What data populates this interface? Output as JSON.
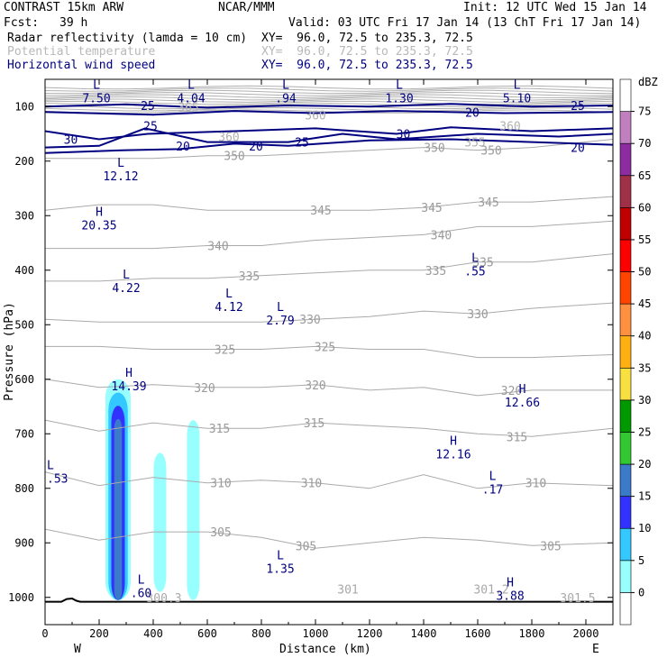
{
  "header": {
    "model": "CONTRAST 15km ARW",
    "org": "NCAR/MMM",
    "init": "Init: 12 UTC Wed 15 Jan 14",
    "fcst_label": "Fcst:",
    "fcst_value": "39 h",
    "valid": "Valid: 03 UTC Fri 17 Jan 14 (13 ChT Fri 17 Jan 14)",
    "field1_name": "Radar reflectivity (lamda = 10 cm)",
    "field1_xy": "XY=  96.0, 72.5 to 235.3, 72.5",
    "field2_name": "Potential temperature",
    "field2_xy": "XY=  96.0, 72.5 to 235.3, 72.5",
    "field3_name": "Horizontal wind speed",
    "field3_xy": "XY=  96.0, 72.5 to 235.3, 72.5"
  },
  "chart_data": {
    "type": "cross-section",
    "xlabel": "Distance (km)",
    "ylabel": "Pressure (hPa)",
    "xlim": [
      0,
      2100
    ],
    "ylim": [
      1050,
      50
    ],
    "x_ticks": [
      0,
      200,
      400,
      600,
      800,
      1000,
      1200,
      1400,
      1600,
      1800,
      2000
    ],
    "y_ticks": [
      100,
      200,
      300,
      400,
      500,
      600,
      700,
      800,
      900,
      1000
    ],
    "x_end_labels": {
      "west": "W",
      "east": "E"
    },
    "colorbar": {
      "unit": "dBZ",
      "levels": [
        0,
        5,
        10,
        15,
        20,
        25,
        30,
        35,
        40,
        45,
        50,
        55,
        60,
        65,
        70,
        75
      ],
      "colors": [
        "#ffffff",
        "#98ffff",
        "#33c8ff",
        "#3232ff",
        "#3a7ac8",
        "#32c832",
        "#009900",
        "#f8e040",
        "#ffb010",
        "#ff9040",
        "#ff4400",
        "#ff0000",
        "#c00000",
        "#a03048",
        "#8c2ca0",
        "#c080c0",
        "#ffffff"
      ]
    },
    "reflectivity_plumes": [
      {
        "x": 270,
        "p_top": 600,
        "p_bottom": 1005,
        "max_dbz": 20
      },
      {
        "x": 425,
        "p_top": 735,
        "p_bottom": 990,
        "max_dbz": 5
      },
      {
        "x": 548,
        "p_top": 675,
        "p_bottom": 1005,
        "max_dbz": 5
      }
    ],
    "theta_isentropes": [
      {
        "label": "305",
        "points": [
          [
            0,
            875
          ],
          [
            200,
            895
          ],
          [
            400,
            880
          ],
          [
            600,
            880
          ],
          [
            800,
            890
          ],
          [
            1000,
            910
          ],
          [
            1200,
            900
          ],
          [
            1400,
            890
          ],
          [
            1600,
            895
          ],
          [
            1800,
            905
          ],
          [
            2100,
            900
          ]
        ],
        "label_at": [
          [
            650,
            880
          ],
          [
            965,
            905
          ],
          [
            1870,
            905
          ]
        ]
      },
      {
        "label": "310",
        "points": [
          [
            0,
            770
          ],
          [
            200,
            795
          ],
          [
            400,
            780
          ],
          [
            600,
            790
          ],
          [
            800,
            785
          ],
          [
            1000,
            790
          ],
          [
            1200,
            800
          ],
          [
            1400,
            775
          ],
          [
            1600,
            800
          ],
          [
            1800,
            790
          ],
          [
            2100,
            795
          ]
        ],
        "label_at": [
          [
            650,
            790
          ],
          [
            985,
            790
          ],
          [
            1815,
            790
          ]
        ]
      },
      {
        "label": "315",
        "points": [
          [
            0,
            675
          ],
          [
            200,
            695
          ],
          [
            400,
            680
          ],
          [
            600,
            690
          ],
          [
            800,
            690
          ],
          [
            1000,
            680
          ],
          [
            1200,
            685
          ],
          [
            1400,
            690
          ],
          [
            1600,
            700
          ],
          [
            1800,
            705
          ],
          [
            2100,
            690
          ]
        ],
        "label_at": [
          [
            645,
            690
          ],
          [
            995,
            680
          ],
          [
            1745,
            705
          ]
        ]
      },
      {
        "label": "320",
        "points": [
          [
            0,
            600
          ],
          [
            200,
            615
          ],
          [
            400,
            610
          ],
          [
            600,
            615
          ],
          [
            800,
            615
          ],
          [
            1000,
            610
          ],
          [
            1200,
            620
          ],
          [
            1400,
            615
          ],
          [
            1600,
            630
          ],
          [
            1800,
            620
          ],
          [
            2100,
            620
          ]
        ],
        "label_at": [
          [
            590,
            615
          ],
          [
            1000,
            610
          ],
          [
            1725,
            620
          ]
        ]
      },
      {
        "label": "325",
        "points": [
          [
            0,
            540
          ],
          [
            200,
            540
          ],
          [
            400,
            545
          ],
          [
            600,
            545
          ],
          [
            800,
            545
          ],
          [
            1000,
            540
          ],
          [
            1200,
            545
          ],
          [
            1400,
            545
          ],
          [
            1600,
            560
          ],
          [
            1800,
            560
          ],
          [
            2100,
            555
          ]
        ],
        "label_at": [
          [
            665,
            545
          ],
          [
            1035,
            540
          ]
        ]
      },
      {
        "label": "330",
        "points": [
          [
            0,
            490
          ],
          [
            200,
            495
          ],
          [
            400,
            495
          ],
          [
            600,
            495
          ],
          [
            800,
            495
          ],
          [
            1000,
            490
          ],
          [
            1200,
            485
          ],
          [
            1400,
            475
          ],
          [
            1600,
            480
          ],
          [
            1800,
            470
          ],
          [
            2100,
            460
          ]
        ],
        "label_at": [
          [
            980,
            490
          ],
          [
            1600,
            480
          ]
        ]
      },
      {
        "label": "335",
        "points": [
          [
            0,
            420
          ],
          [
            200,
            420
          ],
          [
            400,
            415
          ],
          [
            600,
            415
          ],
          [
            800,
            410
          ],
          [
            1000,
            405
          ],
          [
            1200,
            400
          ],
          [
            1400,
            400
          ],
          [
            1600,
            385
          ],
          [
            1800,
            385
          ],
          [
            2100,
            370
          ]
        ],
        "label_at": [
          [
            755,
            410
          ],
          [
            1445,
            400
          ],
          [
            1620,
            385
          ]
        ]
      },
      {
        "label": "340",
        "points": [
          [
            0,
            360
          ],
          [
            200,
            360
          ],
          [
            400,
            360
          ],
          [
            600,
            355
          ],
          [
            800,
            355
          ],
          [
            1000,
            345
          ],
          [
            1200,
            340
          ],
          [
            1400,
            335
          ],
          [
            1600,
            320
          ],
          [
            1800,
            320
          ],
          [
            2100,
            310
          ]
        ],
        "label_at": [
          [
            640,
            355
          ],
          [
            1465,
            335
          ]
        ]
      },
      {
        "label": "345",
        "points": [
          [
            0,
            290
          ],
          [
            200,
            280
          ],
          [
            400,
            280
          ],
          [
            600,
            290
          ],
          [
            800,
            290
          ],
          [
            1000,
            290
          ],
          [
            1200,
            290
          ],
          [
            1400,
            285
          ],
          [
            1600,
            275
          ],
          [
            1800,
            275
          ],
          [
            2100,
            265
          ]
        ],
        "label_at": [
          [
            1020,
            290
          ],
          [
            1430,
            285
          ],
          [
            1640,
            275
          ]
        ]
      },
      {
        "label": "350",
        "points": [
          [
            0,
            195
          ],
          [
            200,
            195
          ],
          [
            400,
            195
          ],
          [
            600,
            190
          ],
          [
            800,
            190
          ],
          [
            1000,
            185
          ],
          [
            1200,
            180
          ],
          [
            1400,
            175
          ],
          [
            1600,
            180
          ],
          [
            1800,
            175
          ],
          [
            2100,
            160
          ]
        ],
        "label_at": [
          [
            700,
            190
          ],
          [
            1440,
            175
          ],
          [
            1650,
            180
          ]
        ]
      }
    ],
    "theta_upper_labels": [
      {
        "label": "355",
        "at": [
          1590,
          165
        ]
      },
      {
        "label": "360",
        "at": [
          1720,
          135
        ]
      },
      {
        "label": "360",
        "at": [
          680,
          155
        ]
      },
      {
        "label": "360",
        "at": [
          1000,
          115
        ]
      },
      {
        "label": "365",
        "at": [
          530,
          100
        ]
      }
    ],
    "theta_near_surface_labels": [
      {
        "label": "300.3",
        "at": [
          440,
          1000
        ]
      },
      {
        "label": "301",
        "at": [
          1120,
          985
        ]
      },
      {
        "label": "301.5",
        "at": [
          1970,
          1000
        ]
      },
      {
        "label": "301.2",
        "at": [
          1650,
          985
        ]
      }
    ],
    "wind_isotachs": [
      {
        "label": "25",
        "points": [
          [
            0,
            100
          ],
          [
            300,
            96
          ],
          [
            600,
            102
          ],
          [
            900,
            98
          ],
          [
            1200,
            100
          ],
          [
            1500,
            95
          ],
          [
            1800,
            100
          ],
          [
            2100,
            98
          ]
        ],
        "label_at": [
          [
            380,
            98
          ],
          [
            1970,
            98
          ]
        ]
      },
      {
        "label": "20",
        "points": [
          [
            0,
            110
          ],
          [
            400,
            115
          ],
          [
            700,
            108
          ],
          [
            1000,
            112
          ],
          [
            1300,
            108
          ],
          [
            1700,
            112
          ],
          [
            2100,
            110
          ]
        ],
        "label_at": [
          [
            1580,
            110
          ]
        ]
      },
      {
        "label": "30",
        "points": [
          [
            0,
            145
          ],
          [
            200,
            160
          ],
          [
            380,
            150
          ],
          [
            700,
            145
          ],
          [
            1000,
            140
          ],
          [
            1300,
            150
          ],
          [
            1500,
            138
          ],
          [
            1800,
            145
          ],
          [
            2100,
            140
          ]
        ],
        "label_at": [
          [
            95,
            160
          ],
          [
            1325,
            150
          ]
        ]
      },
      {
        "label": "25",
        "points": [
          [
            0,
            175
          ],
          [
            200,
            172
          ],
          [
            370,
            140
          ],
          [
            600,
            165
          ],
          [
            900,
            165
          ],
          [
            1100,
            150
          ],
          [
            1300,
            160
          ],
          [
            1600,
            150
          ],
          [
            1900,
            155
          ],
          [
            2100,
            150
          ]
        ],
        "label_at": [
          [
            390,
            135
          ],
          [
            950,
            165
          ]
        ]
      },
      {
        "label": "20",
        "points": [
          [
            0,
            185
          ],
          [
            300,
            180
          ],
          [
            500,
            178
          ],
          [
            700,
            168
          ],
          [
            900,
            172
          ],
          [
            1200,
            162
          ],
          [
            1500,
            160
          ],
          [
            1800,
            165
          ],
          [
            2100,
            170
          ]
        ],
        "label_at": [
          [
            510,
            172
          ],
          [
            780,
            172
          ],
          [
            1970,
            175
          ]
        ]
      }
    ],
    "extrema": [
      {
        "type": "L",
        "value": "7.50",
        "at": [
          190,
          72
        ]
      },
      {
        "type": "L",
        "value": "4.04",
        "at": [
          540,
          72
        ]
      },
      {
        "type": "L",
        "value": ".94",
        "at": [
          890,
          72
        ]
      },
      {
        "type": "L",
        "value": "1.30",
        "at": [
          1310,
          72
        ]
      },
      {
        "type": "L",
        "value": "5.10",
        "at": [
          1745,
          72
        ]
      },
      {
        "type": "L",
        "value": "12.12",
        "at": [
          280,
          215
        ]
      },
      {
        "type": "H",
        "value": "20.35",
        "at": [
          200,
          305
        ]
      },
      {
        "type": "L",
        "value": "4.22",
        "at": [
          300,
          420
        ]
      },
      {
        "type": "L",
        "value": "4.12",
        "at": [
          680,
          455
        ]
      },
      {
        "type": "L",
        "value": "2.79",
        "at": [
          870,
          480
        ]
      },
      {
        "type": "L",
        "value": ".55",
        "at": [
          1590,
          390
        ]
      },
      {
        "type": "H",
        "value": "14.39",
        "at": [
          310,
          600
        ]
      },
      {
        "type": "H",
        "value": "12.66",
        "at": [
          1765,
          630
        ]
      },
      {
        "type": "H",
        "value": "12.16",
        "at": [
          1510,
          725
        ]
      },
      {
        "type": "L",
        "value": ".17",
        "at": [
          1655,
          790
        ]
      },
      {
        "type": "L",
        "value": ".53",
        "at": [
          0,
          770
        ]
      },
      {
        "type": "L",
        "value": "1.35",
        "at": [
          870,
          935
        ]
      },
      {
        "type": "L",
        "value": ".60",
        "at": [
          355,
          980
        ]
      },
      {
        "type": "H",
        "value": "3.88",
        "at": [
          1720,
          985
        ]
      }
    ],
    "terrain": [
      [
        0,
        1008
      ],
      [
        60,
        1008
      ],
      [
        80,
        1003
      ],
      [
        100,
        1002
      ],
      [
        115,
        1006
      ],
      [
        130,
        1008
      ],
      [
        2100,
        1008
      ]
    ]
  }
}
